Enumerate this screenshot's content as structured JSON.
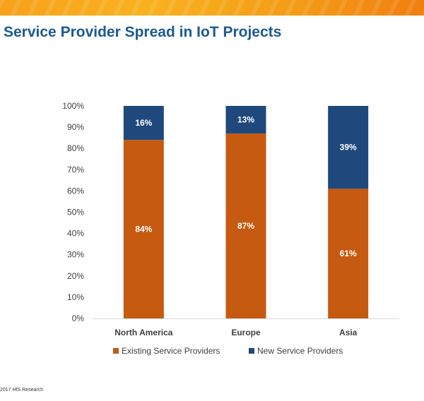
{
  "page": {
    "title": "Service Provider Spread in IoT Projects",
    "footer": "2017 HfS Research"
  },
  "colors": {
    "existing": "#c65a11",
    "new": "#1f497d",
    "title": "#1c5a94",
    "banner": "#f7a11a"
  },
  "chart_data": {
    "type": "bar",
    "stacked": true,
    "categories": [
      "North America",
      "Europe",
      "Asia"
    ],
    "series": [
      {
        "name": "Existing Service Providers",
        "values": [
          84,
          87,
          61
        ],
        "labels": [
          "84%",
          "87%",
          "61%"
        ]
      },
      {
        "name": "New Service Providers",
        "values": [
          16,
          13,
          39
        ],
        "labels": [
          "16%",
          "13%",
          "39%"
        ]
      }
    ],
    "ylim": [
      0,
      100
    ],
    "yticks": [
      "0%",
      "10%",
      "20%",
      "30%",
      "40%",
      "50%",
      "60%",
      "70%",
      "80%",
      "90%",
      "100%"
    ],
    "legend_position": "bottom",
    "grid": false
  }
}
